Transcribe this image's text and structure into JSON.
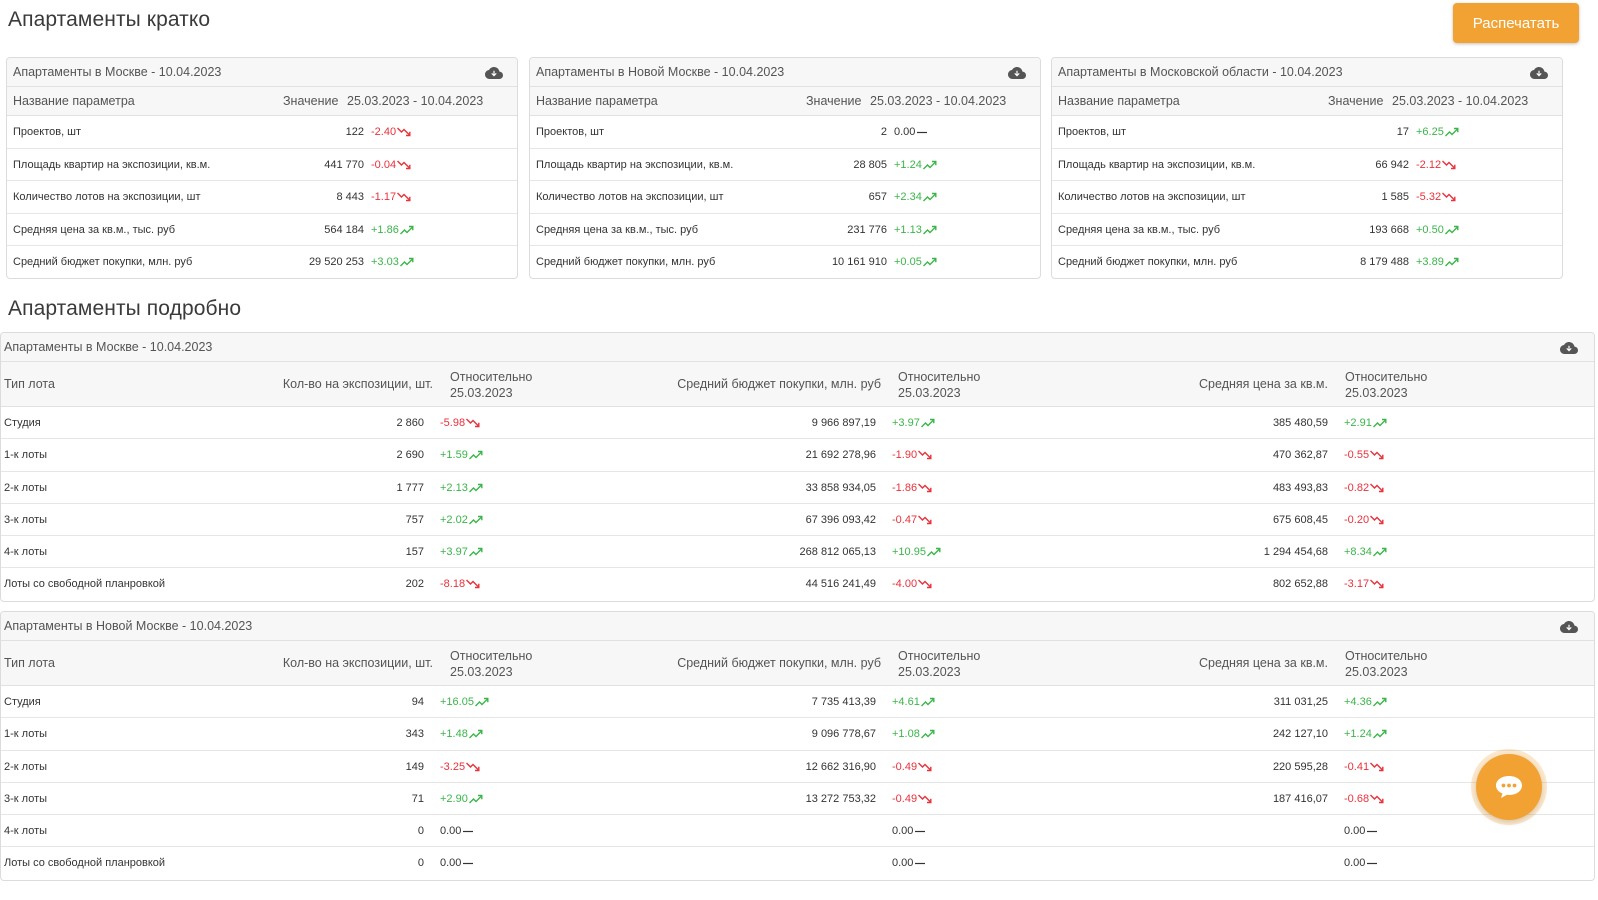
{
  "brief": {
    "title": "Апартаменты кратко",
    "print_label": "Распечатать",
    "col_param": "Название параметра",
    "col_value": "Значение",
    "col_period": "25.03.2023 - 10.04.2023",
    "cards": [
      {
        "title": "Апартаменты в Москве - 10.04.2023",
        "rows": [
          {
            "label": "Проектов, шт",
            "value": "122",
            "change": "-2.40",
            "dir": "down"
          },
          {
            "label": "Площадь квартир на экспозиции, кв.м.",
            "value": "441 770",
            "change": "-0.04",
            "dir": "down"
          },
          {
            "label": "Количество лотов на экспозиции, шт",
            "value": "8 443",
            "change": "-1.17",
            "dir": "down"
          },
          {
            "label": "Средняя цена за кв.м., тыс. руб",
            "value": "564 184",
            "change": "+1.86",
            "dir": "up"
          },
          {
            "label": "Средний бюджет покупки, млн. руб",
            "value": "29 520 253",
            "change": "+3.03",
            "dir": "up"
          }
        ]
      },
      {
        "title": "Апартаменты в Новой Москве - 10.04.2023",
        "rows": [
          {
            "label": "Проектов, шт",
            "value": "2",
            "change": "0.00",
            "dir": "flat"
          },
          {
            "label": "Площадь квартир на экспозиции, кв.м.",
            "value": "28 805",
            "change": "+1.24",
            "dir": "up"
          },
          {
            "label": "Количество лотов на экспозиции, шт",
            "value": "657",
            "change": "+2.34",
            "dir": "up"
          },
          {
            "label": "Средняя цена за кв.м., тыс. руб",
            "value": "231 776",
            "change": "+1.13",
            "dir": "up"
          },
          {
            "label": "Средний бюджет покупки, млн. руб",
            "value": "10 161 910",
            "change": "+0.05",
            "dir": "up"
          }
        ]
      },
      {
        "title": "Апартаменты в Московской области - 10.04.2023",
        "rows": [
          {
            "label": "Проектов, шт",
            "value": "17",
            "change": "+6.25",
            "dir": "up"
          },
          {
            "label": "Площадь квартир на экспозиции, кв.м.",
            "value": "66 942",
            "change": "-2.12",
            "dir": "down"
          },
          {
            "label": "Количество лотов на экспозиции, шт",
            "value": "1 585",
            "change": "-5.32",
            "dir": "down"
          },
          {
            "label": "Средняя цена за кв.м., тыс. руб",
            "value": "193 668",
            "change": "+0.50",
            "dir": "up"
          },
          {
            "label": "Средний бюджет покупки, млн. руб",
            "value": "8 179 488",
            "change": "+3.89",
            "dir": "up"
          }
        ]
      }
    ]
  },
  "detailed": {
    "title": "Апартаменты подробно",
    "columns": {
      "lot_type": "Тип лота",
      "count": "Кол-во на экспозиции, шт.",
      "relative_line1": "Относительно",
      "relative_line2": "25.03.2023",
      "budget": "Средний бюджет покупки, млн. руб",
      "price": "Средняя цена за кв.м."
    },
    "tables": [
      {
        "title": "Апартаменты в Москве - 10.04.2023",
        "rows": [
          {
            "type": "Студия",
            "count": "2 860",
            "count_chg": "-5.98",
            "count_dir": "down",
            "budget": "9 966 897,19",
            "budget_chg": "+3.97",
            "budget_dir": "up",
            "price": "385 480,59",
            "price_chg": "+2.91",
            "price_dir": "up"
          },
          {
            "type": "1-к лоты",
            "count": "2 690",
            "count_chg": "+1.59",
            "count_dir": "up",
            "budget": "21 692 278,96",
            "budget_chg": "-1.90",
            "budget_dir": "down",
            "price": "470 362,87",
            "price_chg": "-0.55",
            "price_dir": "down"
          },
          {
            "type": "2-к лоты",
            "count": "1 777",
            "count_chg": "+2.13",
            "count_dir": "up",
            "budget": "33 858 934,05",
            "budget_chg": "-1.86",
            "budget_dir": "down",
            "price": "483 493,83",
            "price_chg": "-0.82",
            "price_dir": "down"
          },
          {
            "type": "3-к лоты",
            "count": "757",
            "count_chg": "+2.02",
            "count_dir": "up",
            "budget": "67 396 093,42",
            "budget_chg": "-0.47",
            "budget_dir": "down",
            "price": "675 608,45",
            "price_chg": "-0.20",
            "price_dir": "down"
          },
          {
            "type": "4-к лоты",
            "count": "157",
            "count_chg": "+3.97",
            "count_dir": "up",
            "budget": "268 812 065,13",
            "budget_chg": "+10.95",
            "budget_dir": "up",
            "price": "1 294 454,68",
            "price_chg": "+8.34",
            "price_dir": "up"
          },
          {
            "type": "Лоты со свободной планровкой",
            "count": "202",
            "count_chg": "-8.18",
            "count_dir": "down",
            "budget": "44 516 241,49",
            "budget_chg": "-4.00",
            "budget_dir": "down",
            "price": "802 652,88",
            "price_chg": "-3.17",
            "price_dir": "down"
          }
        ]
      },
      {
        "title": "Апартаменты в Новой Москве - 10.04.2023",
        "rows": [
          {
            "type": "Студия",
            "count": "94",
            "count_chg": "+16.05",
            "count_dir": "up",
            "budget": "7 735 413,39",
            "budget_chg": "+4.61",
            "budget_dir": "up",
            "price": "311 031,25",
            "price_chg": "+4.36",
            "price_dir": "up"
          },
          {
            "type": "1-к лоты",
            "count": "343",
            "count_chg": "+1.48",
            "count_dir": "up",
            "budget": "9 096 778,67",
            "budget_chg": "+1.08",
            "budget_dir": "up",
            "price": "242 127,10",
            "price_chg": "+1.24",
            "price_dir": "up"
          },
          {
            "type": "2-к лоты",
            "count": "149",
            "count_chg": "-3.25",
            "count_dir": "down",
            "budget": "12 662 316,90",
            "budget_chg": "-0.49",
            "budget_dir": "down",
            "price": "220 595,28",
            "price_chg": "-0.41",
            "price_dir": "down"
          },
          {
            "type": "3-к лоты",
            "count": "71",
            "count_chg": "+2.90",
            "count_dir": "up",
            "budget": "13 272 753,32",
            "budget_chg": "-0.49",
            "budget_dir": "down",
            "price": "187 416,07",
            "price_chg": "-0.68",
            "price_dir": "down"
          },
          {
            "type": "4-к лоты",
            "count": "0",
            "count_chg": "0.00",
            "count_dir": "flat",
            "budget": "",
            "budget_chg": "0.00",
            "budget_dir": "flat",
            "price": "",
            "price_chg": "0.00",
            "price_dir": "flat"
          },
          {
            "type": "Лоты со свободной планровкой",
            "count": "0",
            "count_chg": "0.00",
            "count_dir": "flat",
            "budget": "",
            "budget_chg": "0.00",
            "budget_dir": "flat",
            "price": "",
            "price_chg": "0.00",
            "price_dir": "flat"
          }
        ]
      }
    ]
  },
  "icons": {
    "download": "cloud-download-icon",
    "trend_up": "trending-up-icon",
    "trend_down": "trending-down-icon",
    "trend_flat": "dash-icon",
    "chat": "chat-bubble-icon"
  },
  "colors": {
    "accent": "#f2a232",
    "up": "#3bb54a",
    "down": "#e8323c"
  }
}
